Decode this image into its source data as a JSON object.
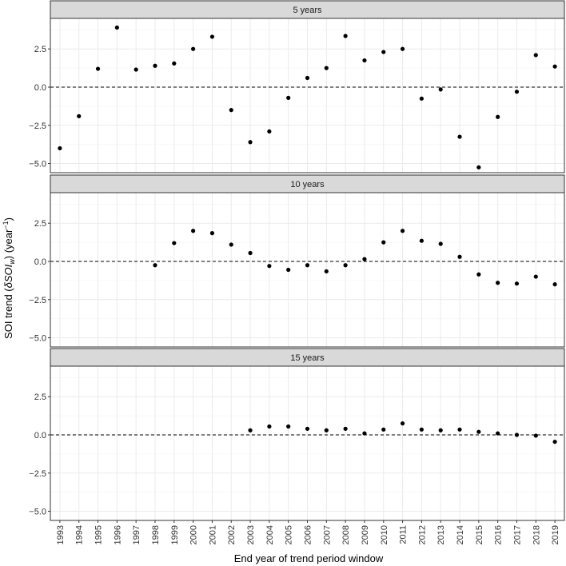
{
  "chart_data": {
    "type": "scatter",
    "xlabel": "End year of trend period window",
    "ylabel_parts": [
      "SOI trend (",
      "δ",
      "SOI",
      "w",
      ") (year",
      "−1",
      ")"
    ],
    "x_categories": [
      1993,
      1994,
      1995,
      1996,
      1997,
      1998,
      1999,
      2000,
      2001,
      2002,
      2003,
      2004,
      2005,
      2006,
      2007,
      2008,
      2009,
      2010,
      2011,
      2012,
      2013,
      2014,
      2015,
      2016,
      2017,
      2018,
      2019
    ],
    "x_tick_labels": [
      "1993",
      "1994",
      "1995",
      "1996",
      "1997",
      "1998",
      "1999",
      "2000",
      "2001",
      "2002",
      "2003",
      "2004",
      "2005",
      "2006",
      "2007",
      "2008",
      "2009",
      "2010",
      "2011",
      "2012",
      "2013",
      "2014",
      "2015",
      "2016",
      "2017",
      "2018",
      "2019"
    ],
    "ylim": [
      -5.6,
      4.5
    ],
    "y_ticks": [
      -5.0,
      -2.5,
      0.0,
      2.5
    ],
    "y_tick_labels": [
      "−5.0",
      "−2.5",
      "0.0",
      "2.5"
    ],
    "reference_line": 0,
    "grid": true,
    "facets": [
      {
        "title": "5 years",
        "x": [
          1993,
          1994,
          1995,
          1996,
          1997,
          1998,
          1999,
          2000,
          2001,
          2002,
          2003,
          2004,
          2005,
          2006,
          2007,
          2008,
          2009,
          2010,
          2011,
          2012,
          2013,
          2014,
          2015,
          2016,
          2017,
          2018,
          2019
        ],
        "y": [
          -4.0,
          -1.9,
          1.2,
          3.9,
          1.15,
          1.4,
          1.55,
          2.5,
          3.3,
          -1.5,
          -3.6,
          -2.9,
          -0.7,
          0.6,
          1.25,
          3.35,
          1.75,
          2.3,
          2.5,
          -0.75,
          -0.15,
          -3.25,
          -5.25,
          -1.95,
          -0.3,
          2.1,
          1.35
        ]
      },
      {
        "title": "10 years",
        "x": [
          1998,
          1999,
          2000,
          2001,
          2002,
          2003,
          2004,
          2005,
          2006,
          2007,
          2008,
          2009,
          2010,
          2011,
          2012,
          2013,
          2014,
          2015,
          2016,
          2017,
          2018,
          2019
        ],
        "y": [
          -0.25,
          1.2,
          2.0,
          1.85,
          1.1,
          0.55,
          -0.3,
          -0.55,
          -0.25,
          -0.65,
          -0.25,
          0.15,
          1.25,
          2.0,
          1.35,
          1.15,
          0.3,
          -0.85,
          -1.4,
          -1.45,
          -1.0,
          -1.5
        ]
      },
      {
        "title": "15 years",
        "x": [
          2003,
          2004,
          2005,
          2006,
          2007,
          2008,
          2009,
          2010,
          2011,
          2012,
          2013,
          2014,
          2015,
          2016,
          2017,
          2018,
          2019
        ],
        "y": [
          0.3,
          0.55,
          0.55,
          0.4,
          0.3,
          0.4,
          0.1,
          0.35,
          0.75,
          0.35,
          0.3,
          0.35,
          0.2,
          0.1,
          0.0,
          -0.05,
          -0.45
        ]
      }
    ]
  }
}
